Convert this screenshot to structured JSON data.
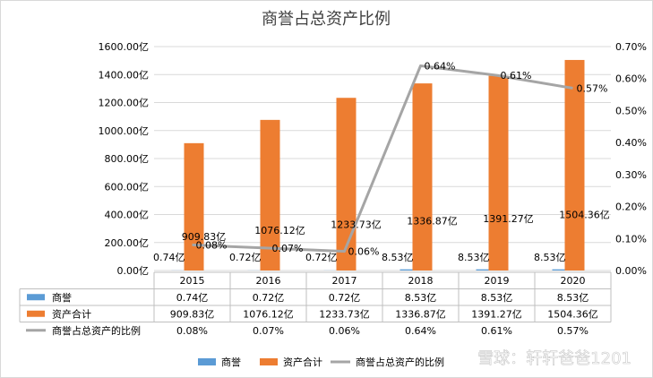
{
  "chart_data": {
    "type": "bar+line",
    "title": "商誉占总资产比例",
    "categories": [
      "2015",
      "2016",
      "2017",
      "2018",
      "2019",
      "2020"
    ],
    "series": [
      {
        "name": "商誉",
        "axis": "left",
        "kind": "bar",
        "color": "#5b9bd5",
        "values": [
          0.74,
          0.72,
          0.72,
          8.53,
          8.53,
          8.53
        ],
        "labels": [
          "0.74亿",
          "0.72亿",
          "0.72亿",
          "8.53亿",
          "8.53亿",
          "8.53亿"
        ]
      },
      {
        "name": "资产合计",
        "axis": "left",
        "kind": "bar",
        "color": "#ed7d31",
        "values": [
          909.83,
          1076.12,
          1233.73,
          1336.87,
          1391.27,
          1504.36
        ],
        "labels": [
          "909.83亿",
          "1076.12亿",
          "1233.73亿",
          "1336.87亿",
          "1391.27亿",
          "1504.36亿"
        ]
      },
      {
        "name": "商誉占总资产的比例",
        "axis": "right",
        "kind": "line",
        "color": "#a5a5a5",
        "values": [
          0.08,
          0.07,
          0.06,
          0.64,
          0.61,
          0.57
        ],
        "labels": [
          "0.08%",
          "0.07%",
          "0.06%",
          "0.64%",
          "0.61%",
          "0.57%"
        ]
      }
    ],
    "y_left": {
      "min": 0,
      "max": 1600,
      "step": 200,
      "ticks": [
        "0.00亿",
        "200.00亿",
        "400.00亿",
        "600.00亿",
        "800.00亿",
        "1000.00亿",
        "1200.00亿",
        "1400.00亿",
        "1600.00亿"
      ]
    },
    "y_right": {
      "min": 0,
      "max": 0.7,
      "step": 0.1,
      "ticks": [
        "0.00%",
        "0.10%",
        "0.20%",
        "0.30%",
        "0.40%",
        "0.50%",
        "0.60%",
        "0.70%"
      ]
    },
    "legend": [
      "商誉",
      "资产合计",
      "商誉占总资产的比例"
    ],
    "legend_position": "bottom",
    "data_table": true
  },
  "watermark": "雪球：轩轩爸爸1201"
}
